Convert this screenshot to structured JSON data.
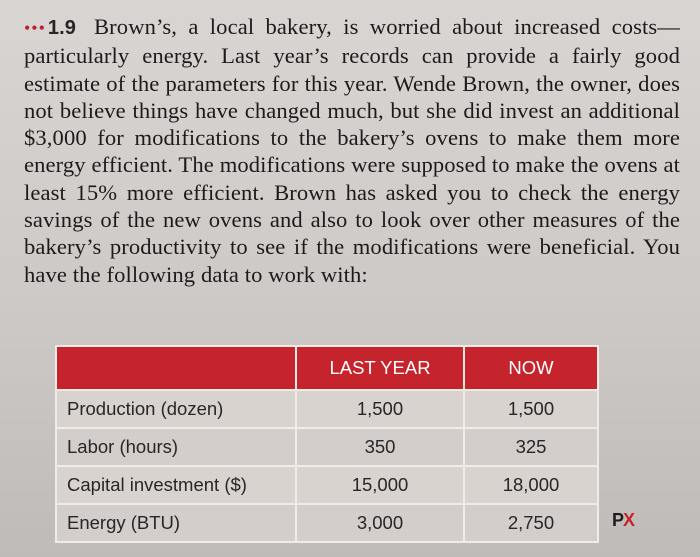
{
  "problem": {
    "dots": "•••",
    "number": "1.9",
    "text": "Brown’s, a local bakery, is worried about increased costs—particularly energy. Last year’s records can provide a fairly good estimate of the parameters for this year. Wende Brown, the owner, does not believe things have changed much, but she did invest an additional $3,000 for modifications to the bakery’s ovens to make them more energy efficient. The modifications were supposed to make the ovens at least 15% more efficient. Brown has asked you to check the energy savings of the new ovens and also to look over other measures of the bakery’s productivity to see if the modifications were beneficial. You have the following data to work with:"
  },
  "table": {
    "headers": [
      "",
      "LAST YEAR",
      "NOW"
    ],
    "rows": [
      {
        "label": "Production (dozen)",
        "last_year": "1,500",
        "now": "1,500"
      },
      {
        "label": "Labor (hours)",
        "last_year": "350",
        "now": "325"
      },
      {
        "label": "Capital investment ($)",
        "last_year": "15,000",
        "now": "18,000"
      },
      {
        "label": "Energy (BTU)",
        "last_year": "3,000",
        "now": "2,750"
      }
    ]
  },
  "logo": {
    "p": "P",
    "x": "X"
  },
  "colors": {
    "accent": "#c5242c",
    "paper": "#d9d5d2"
  }
}
